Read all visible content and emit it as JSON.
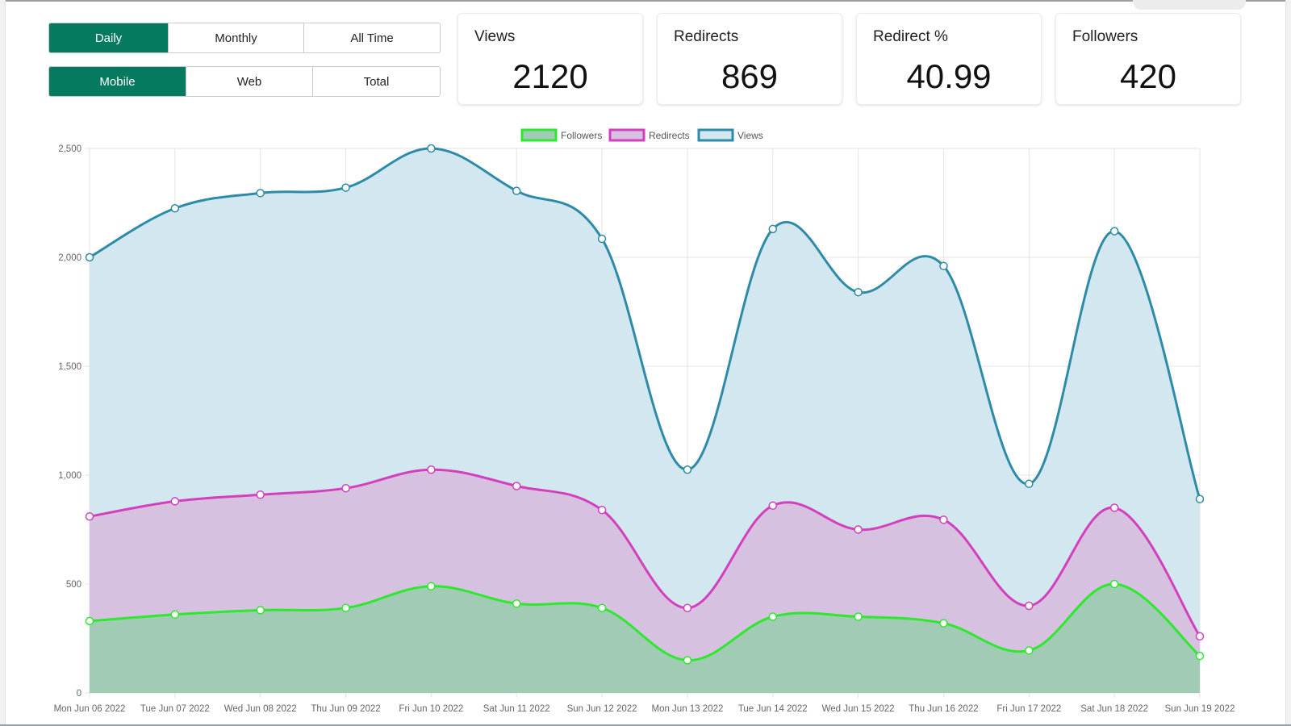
{
  "controls": {
    "range_tabs": [
      {
        "label": "Daily",
        "active": true
      },
      {
        "label": "Monthly",
        "active": false
      },
      {
        "label": "All Time",
        "active": false
      }
    ],
    "platform_tabs": [
      {
        "label": "Mobile",
        "active": true
      },
      {
        "label": "Web",
        "active": false
      },
      {
        "label": "Total",
        "active": false
      }
    ]
  },
  "stats": [
    {
      "label": "Views",
      "value": "2120"
    },
    {
      "label": "Redirects",
      "value": "869"
    },
    {
      "label": "Redirect %",
      "value": "40.99"
    },
    {
      "label": "Followers",
      "value": "420"
    }
  ],
  "colors": {
    "accent": "#067a5f",
    "views_line": "#2e8ba8",
    "views_fill": "#d2e7ef",
    "redirects_line": "#d33fbd",
    "redirects_fill": "#d6c1e0",
    "followers_line": "#2ee82e",
    "followers_fill": "#a2cbb5"
  },
  "chart_data": {
    "type": "area",
    "x": [
      "Mon Jun 06 2022",
      "Tue Jun 07 2022",
      "Wed Jun 08 2022",
      "Thu Jun 09 2022",
      "Fri Jun 10 2022",
      "Sat Jun 11 2022",
      "Sun Jun 12 2022",
      "Mon Jun 13 2022",
      "Tue Jun 14 2022",
      "Wed Jun 15 2022",
      "Thu Jun 16 2022",
      "Fri Jun 17 2022",
      "Sat Jun 18 2022",
      "Sun Jun 19 2022"
    ],
    "series": [
      {
        "name": "Followers",
        "values": [
          330,
          360,
          380,
          390,
          490,
          410,
          390,
          150,
          350,
          350,
          320,
          195,
          500,
          170
        ]
      },
      {
        "name": "Redirects",
        "values": [
          810,
          880,
          910,
          940,
          1025,
          950,
          840,
          390,
          860,
          750,
          795,
          400,
          850,
          260
        ]
      },
      {
        "name": "Views",
        "values": [
          2000,
          2225,
          2295,
          2320,
          2500,
          2305,
          2085,
          1025,
          2130,
          1840,
          1960,
          960,
          2120,
          890
        ]
      }
    ],
    "ylim": [
      0,
      2500
    ],
    "yticks": [
      "0",
      "500",
      "1,000",
      "1,500",
      "2,000",
      "2,500"
    ],
    "ytick_values": [
      0,
      500,
      1000,
      1500,
      2000,
      2500
    ],
    "legend_position": "top-center",
    "grid": true
  }
}
